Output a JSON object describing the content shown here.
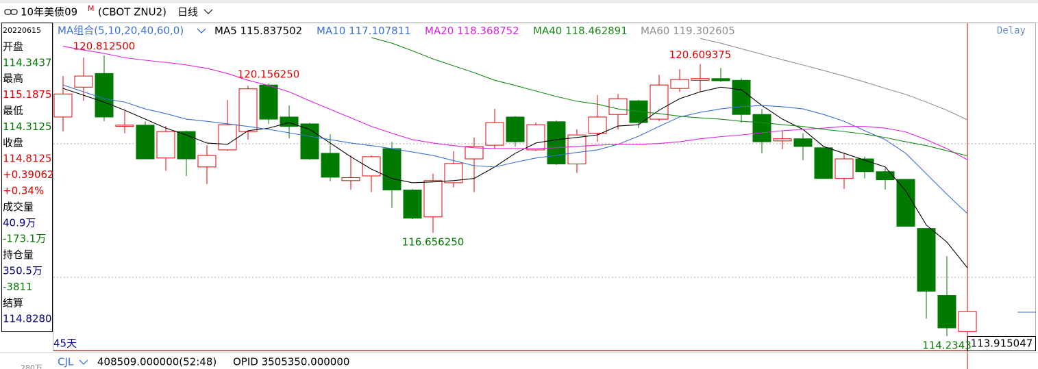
{
  "header": {
    "title": "10年美债09",
    "badge": "M",
    "code": "(CBOT ZNU2)",
    "period": "日线"
  },
  "info_panel": [
    {
      "text": "20220615",
      "color": "#000000"
    },
    {
      "text": "开盘",
      "color": "#000000"
    },
    {
      "text": "114.3437",
      "color": "#007a00"
    },
    {
      "text": "最高",
      "color": "#000000"
    },
    {
      "text": "115.1875",
      "color": "#e00000"
    },
    {
      "text": "最低",
      "color": "#000000"
    },
    {
      "text": "114.3125",
      "color": "#007a00"
    },
    {
      "text": "收盘",
      "color": "#000000"
    },
    {
      "text": "114.8125",
      "color": "#e00000"
    },
    {
      "text": "+0.39062",
      "color": "#e00000"
    },
    {
      "text": "+0.34%",
      "color": "#e00000"
    },
    {
      "text": "成交量",
      "color": "#000000"
    },
    {
      "text": "40.9万",
      "color": "#000080"
    },
    {
      "text": "-173.1万",
      "color": "#007a00"
    },
    {
      "text": "持仓量",
      "color": "#000000"
    },
    {
      "text": "350.5万",
      "color": "#000080"
    },
    {
      "text": "-3811",
      "color": "#007a00"
    },
    {
      "text": "结算",
      "color": "#000000"
    },
    {
      "text": "114.8280",
      "color": "#000080"
    }
  ],
  "chart_data": {
    "type": "candlestick",
    "ma_group_label": "MA组合(5,10,20,40,60,0)",
    "delay_label": "Delay",
    "period_count_label": "45天",
    "last_price": 113.915047,
    "up_color": "#e00000",
    "down_color": "#007a00",
    "ylim": [
      113.9,
      121.55
    ],
    "open": [
      119.37,
      120.07,
      120.39,
      119.15,
      119.18,
      118.41,
      119.03,
      118.2,
      118.6,
      119.03,
      120.12,
      119.37,
      119.21,
      118.52,
      117.88,
      117.99,
      118.63,
      117.66,
      117.03,
      117.83,
      118.39,
      118.71,
      119.37,
      118.6,
      119.26,
      118.27,
      118.99,
      119.43,
      119.75,
      119.32,
      120.04,
      120.23,
      120.27,
      120.23,
      119.43,
      118.81,
      118.86,
      118.65,
      117.93,
      118.39,
      118.09,
      117.91,
      116.76,
      115.19,
      114.34375
    ],
    "high": [
      120.33,
      120.76,
      120.8125,
      119.51,
      119.27,
      119.16,
      119.05,
      118.71,
      119.77,
      120.1,
      120.15625,
      119.64,
      119.23,
      118.97,
      118.47,
      118.47,
      118.79,
      117.68,
      118.04,
      118.57,
      118.89,
      119.56,
      119.39,
      119.24,
      119.29,
      119.08,
      119.88,
      119.91,
      119.77,
      120.36,
      120.49,
      120.609375,
      120.52,
      120.28,
      119.56,
      119.05,
      118.99,
      118.66,
      118.52,
      118.44,
      118.17,
      117.92,
      116.77,
      116.11,
      115.1875
    ],
    "low": [
      119.03,
      119.75,
      119.27,
      118.99,
      118.38,
      118.11,
      117.99,
      117.8,
      118.58,
      118.84,
      119.21,
      118.87,
      118.37,
      117.87,
      117.67,
      117.61,
      117.24,
      116.98,
      116.65625,
      117.72,
      117.61,
      118.63,
      118.68,
      118.58,
      118.25,
      118.06,
      118.79,
      119.08,
      119.11,
      119.27,
      119.96,
      119.96,
      120.19,
      119.24,
      118.52,
      118.62,
      118.36,
      117.92,
      117.69,
      117.93,
      117.67,
      116.8,
      114.65,
      114.234375,
      114.3125
    ],
    "close": [
      119.91,
      120.33,
      119.37,
      119.18,
      118.39,
      119.03,
      118.39,
      118.47,
      119.19,
      120.03,
      119.32,
      119.15,
      118.39,
      117.96,
      117.95,
      118.44,
      117.66,
      117.0,
      117.88,
      118.28,
      118.68,
      119.24,
      118.79,
      119.19,
      118.27,
      118.95,
      119.37,
      119.8,
      119.24,
      120.12,
      120.25,
      120.27,
      120.22,
      119.43,
      118.79,
      118.86,
      118.68,
      117.93,
      118.39,
      118.09,
      117.9,
      116.81,
      115.29,
      114.43,
      114.8125
    ],
    "annotations": [
      {
        "text": "120.812500",
        "index": 2
      },
      {
        "text": "120.156250",
        "index": 10
      },
      {
        "text": "116.656250",
        "index": 18
      },
      {
        "text": "120.609375",
        "index": 31
      },
      {
        "text": "114.2343",
        "index": 43
      }
    ],
    "series": [
      {
        "name": "MA5",
        "color": "#000000",
        "values": [
          120.04,
          119.88,
          119.72,
          119.53,
          119.32,
          119.11,
          118.95,
          118.76,
          118.73,
          119.05,
          119.11,
          119.24,
          119.08,
          118.76,
          118.44,
          118.15,
          117.93,
          117.83,
          117.85,
          117.88,
          117.93,
          118.2,
          118.52,
          118.76,
          118.84,
          118.89,
          118.95,
          119.16,
          119.19,
          119.53,
          119.8,
          119.96,
          120.07,
          120.01,
          119.64,
          119.32,
          119.08,
          118.68,
          118.52,
          118.36,
          118.2,
          117.64,
          116.84,
          116.44,
          115.837502
        ]
      },
      {
        "name": "MA10",
        "color": "#3b6fd6",
        "values": [
          120.12,
          119.96,
          119.8,
          119.72,
          119.56,
          119.45,
          119.32,
          119.27,
          119.21,
          119.15,
          119.08,
          119.0,
          118.92,
          118.84,
          118.76,
          118.7,
          118.63,
          118.55,
          118.47,
          118.35,
          118.23,
          118.2,
          118.31,
          118.41,
          118.47,
          118.54,
          118.6,
          118.73,
          118.92,
          119.15,
          119.37,
          119.48,
          119.56,
          119.61,
          119.64,
          119.61,
          119.56,
          119.43,
          119.27,
          119.05,
          118.84,
          118.52,
          118.04,
          117.56,
          117.107811
        ]
      },
      {
        "name": "MA20",
        "color": "#e020e0",
        "values": [
          121.03,
          120.94,
          120.86,
          120.76,
          120.7,
          120.65,
          120.59,
          120.51,
          120.39,
          120.23,
          120.11,
          119.96,
          119.75,
          119.55,
          119.35,
          119.15,
          118.99,
          118.84,
          118.76,
          118.7,
          118.65,
          118.63,
          118.63,
          118.63,
          118.65,
          118.68,
          118.71,
          118.73,
          118.73,
          118.75,
          118.79,
          118.86,
          118.91,
          118.95,
          119.0,
          119.05,
          119.08,
          119.11,
          119.15,
          119.15,
          119.11,
          119.02,
          118.84,
          118.63,
          118.368752
        ]
      },
      {
        "name": "MA40",
        "color": "#1a8a1a",
        "values": [
          null,
          null,
          null,
          null,
          null,
          null,
          null,
          null,
          null,
          null,
          null,
          null,
          null,
          null,
          null,
          121.23,
          121.1,
          120.92,
          120.73,
          120.57,
          120.41,
          120.23,
          120.11,
          119.98,
          119.85,
          119.74,
          119.67,
          119.56,
          119.5,
          119.45,
          119.39,
          119.35,
          119.32,
          119.27,
          119.24,
          119.19,
          119.15,
          119.08,
          119.03,
          118.97,
          118.89,
          118.79,
          118.7,
          118.58,
          118.462891
        ]
      },
      {
        "name": "MA60",
        "color": "#909090",
        "values": [
          null,
          null,
          null,
          null,
          null,
          null,
          null,
          null,
          null,
          null,
          null,
          null,
          null,
          null,
          null,
          null,
          null,
          null,
          null,
          null,
          null,
          null,
          null,
          null,
          null,
          null,
          null,
          null,
          null,
          null,
          null,
          121.21,
          121.1,
          120.97,
          120.84,
          120.71,
          120.59,
          120.46,
          120.33,
          120.19,
          120.04,
          119.9,
          119.72,
          119.53,
          119.302605
        ]
      }
    ]
  },
  "footer": {
    "indicator": "CJL",
    "volume": "408509.000000(52:48)",
    "opid": "OPID 3505350.000000",
    "scale_label": "280万"
  }
}
